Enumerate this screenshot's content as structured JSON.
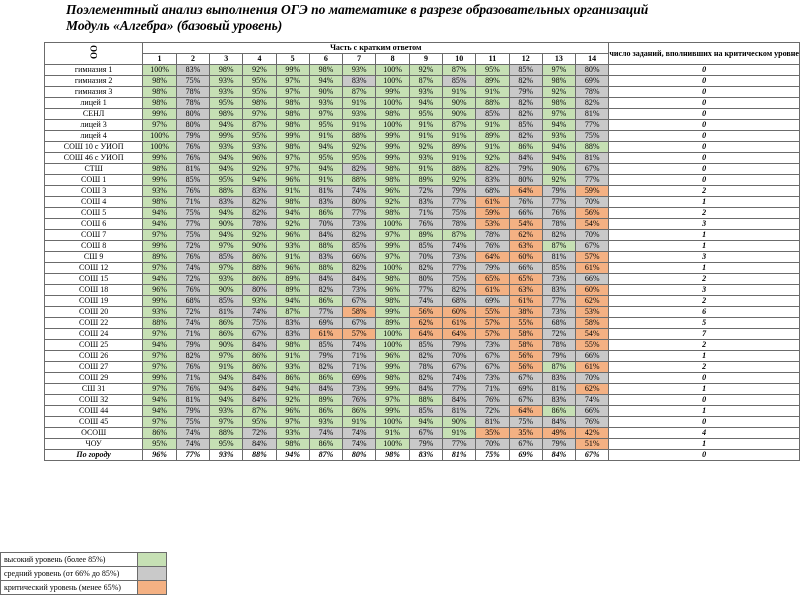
{
  "title_line1": "Поэлементный анализ выполнения ОГЭ по математике в разрезе образовательных организаций",
  "title_line2": "Модуль «Алгебра» (базовый уровень)",
  "header": {
    "oo": "ОО",
    "short_answer": "Часть с кратким ответом",
    "critical": "число заданий, вполнивших на критическом уровне",
    "task_numbers": [
      "1",
      "2",
      "3",
      "4",
      "5",
      "6",
      "7",
      "8",
      "9",
      "10",
      "11",
      "12",
      "13",
      "14"
    ]
  },
  "colors": {
    "high": "#c6e0b4",
    "mid": "#c9c9c9",
    "crit": "#f4b183"
  },
  "rows": [
    {
      "name": "гимназия 1",
      "v": [
        "100%",
        "83%",
        "98%",
        "92%",
        "99%",
        "98%",
        "93%",
        "100%",
        "92%",
        "87%",
        "95%",
        "85%",
        "97%",
        "80%"
      ],
      "c": [
        "g",
        "m",
        "g",
        "g",
        "g",
        "g",
        "g",
        "g",
        "g",
        "g",
        "g",
        "m",
        "g",
        "m"
      ],
      "n": "0"
    },
    {
      "name": "гимназия 2",
      "v": [
        "98%",
        "75%",
        "93%",
        "95%",
        "97%",
        "94%",
        "83%",
        "100%",
        "87%",
        "85%",
        "89%",
        "82%",
        "98%",
        "69%"
      ],
      "c": [
        "g",
        "m",
        "g",
        "g",
        "g",
        "g",
        "m",
        "g",
        "g",
        "m",
        "g",
        "m",
        "g",
        "m"
      ],
      "n": "0"
    },
    {
      "name": "гимназия 3",
      "v": [
        "98%",
        "78%",
        "93%",
        "95%",
        "97%",
        "90%",
        "87%",
        "99%",
        "93%",
        "91%",
        "91%",
        "79%",
        "92%",
        "78%"
      ],
      "c": [
        "g",
        "m",
        "g",
        "g",
        "g",
        "g",
        "g",
        "g",
        "g",
        "g",
        "g",
        "m",
        "g",
        "m"
      ],
      "n": "0"
    },
    {
      "name": "лицей 1",
      "v": [
        "98%",
        "78%",
        "95%",
        "98%",
        "98%",
        "93%",
        "91%",
        "100%",
        "94%",
        "90%",
        "88%",
        "82%",
        "98%",
        "82%"
      ],
      "c": [
        "g",
        "m",
        "g",
        "g",
        "g",
        "g",
        "g",
        "g",
        "g",
        "g",
        "g",
        "m",
        "g",
        "m"
      ],
      "n": "0"
    },
    {
      "name": "СЕНЛ",
      "v": [
        "99%",
        "80%",
        "98%",
        "97%",
        "98%",
        "97%",
        "93%",
        "98%",
        "95%",
        "90%",
        "85%",
        "82%",
        "97%",
        "81%"
      ],
      "c": [
        "g",
        "m",
        "g",
        "g",
        "g",
        "g",
        "g",
        "g",
        "g",
        "g",
        "m",
        "m",
        "g",
        "m"
      ],
      "n": "0"
    },
    {
      "name": "лицей 3",
      "v": [
        "97%",
        "80%",
        "94%",
        "87%",
        "98%",
        "95%",
        "91%",
        "100%",
        "91%",
        "87%",
        "91%",
        "85%",
        "94%",
        "77%"
      ],
      "c": [
        "g",
        "m",
        "g",
        "g",
        "g",
        "g",
        "g",
        "g",
        "g",
        "g",
        "g",
        "m",
        "g",
        "m"
      ],
      "n": "0"
    },
    {
      "name": "лицей 4",
      "v": [
        "100%",
        "79%",
        "99%",
        "95%",
        "99%",
        "91%",
        "88%",
        "99%",
        "91%",
        "91%",
        "89%",
        "82%",
        "93%",
        "75%"
      ],
      "c": [
        "g",
        "m",
        "g",
        "g",
        "g",
        "g",
        "g",
        "g",
        "g",
        "g",
        "g",
        "m",
        "g",
        "m"
      ],
      "n": "0"
    },
    {
      "name": "СОШ 10 с УИОП",
      "v": [
        "100%",
        "76%",
        "93%",
        "93%",
        "98%",
        "94%",
        "92%",
        "99%",
        "92%",
        "89%",
        "91%",
        "86%",
        "94%",
        "88%"
      ],
      "c": [
        "g",
        "m",
        "g",
        "g",
        "g",
        "g",
        "g",
        "g",
        "g",
        "g",
        "g",
        "g",
        "g",
        "g"
      ],
      "n": "0"
    },
    {
      "name": "СОШ 46 с УИОП",
      "v": [
        "99%",
        "76%",
        "94%",
        "96%",
        "97%",
        "95%",
        "95%",
        "99%",
        "93%",
        "91%",
        "92%",
        "84%",
        "94%",
        "81%"
      ],
      "c": [
        "g",
        "m",
        "g",
        "g",
        "g",
        "g",
        "g",
        "g",
        "g",
        "g",
        "g",
        "m",
        "g",
        "m"
      ],
      "n": "0"
    },
    {
      "name": "СТШ",
      "v": [
        "98%",
        "81%",
        "94%",
        "92%",
        "97%",
        "94%",
        "82%",
        "98%",
        "91%",
        "88%",
        "82%",
        "79%",
        "90%",
        "67%"
      ],
      "c": [
        "g",
        "m",
        "g",
        "g",
        "g",
        "g",
        "m",
        "g",
        "g",
        "g",
        "m",
        "m",
        "g",
        "m"
      ],
      "n": "0"
    },
    {
      "name": "СОШ 1",
      "v": [
        "99%",
        "85%",
        "95%",
        "94%",
        "96%",
        "91%",
        "88%",
        "98%",
        "89%",
        "92%",
        "83%",
        "80%",
        "92%",
        "77%"
      ],
      "c": [
        "g",
        "m",
        "g",
        "g",
        "g",
        "g",
        "g",
        "g",
        "g",
        "g",
        "m",
        "m",
        "g",
        "m"
      ],
      "n": "0"
    },
    {
      "name": "СОШ 3",
      "v": [
        "93%",
        "76%",
        "88%",
        "83%",
        "91%",
        "81%",
        "74%",
        "96%",
        "72%",
        "79%",
        "68%",
        "64%",
        "79%",
        "59%"
      ],
      "c": [
        "g",
        "m",
        "g",
        "m",
        "g",
        "m",
        "m",
        "g",
        "m",
        "m",
        "m",
        "c",
        "m",
        "c"
      ],
      "n": "2"
    },
    {
      "name": "СОШ 4",
      "v": [
        "98%",
        "71%",
        "83%",
        "82%",
        "98%",
        "83%",
        "80%",
        "92%",
        "83%",
        "77%",
        "61%",
        "76%",
        "77%",
        "70%"
      ],
      "c": [
        "g",
        "m",
        "m",
        "m",
        "g",
        "m",
        "m",
        "g",
        "m",
        "m",
        "c",
        "m",
        "m",
        "m"
      ],
      "n": "1"
    },
    {
      "name": "СОШ 5",
      "v": [
        "94%",
        "75%",
        "94%",
        "82%",
        "94%",
        "86%",
        "77%",
        "98%",
        "71%",
        "75%",
        "59%",
        "66%",
        "76%",
        "56%"
      ],
      "c": [
        "g",
        "m",
        "g",
        "m",
        "g",
        "g",
        "m",
        "g",
        "m",
        "m",
        "c",
        "m",
        "m",
        "c"
      ],
      "n": "2"
    },
    {
      "name": "СОШ 6",
      "v": [
        "94%",
        "77%",
        "90%",
        "78%",
        "92%",
        "70%",
        "73%",
        "100%",
        "76%",
        "78%",
        "53%",
        "54%",
        "78%",
        "54%"
      ],
      "c": [
        "g",
        "m",
        "g",
        "m",
        "g",
        "m",
        "m",
        "g",
        "m",
        "m",
        "c",
        "c",
        "m",
        "c"
      ],
      "n": "3"
    },
    {
      "name": "СОШ 7",
      "v": [
        "97%",
        "75%",
        "94%",
        "92%",
        "96%",
        "84%",
        "82%",
        "97%",
        "89%",
        "87%",
        "78%",
        "62%",
        "82%",
        "70%"
      ],
      "c": [
        "g",
        "m",
        "g",
        "g",
        "g",
        "m",
        "m",
        "g",
        "g",
        "g",
        "m",
        "c",
        "m",
        "m"
      ],
      "n": "1"
    },
    {
      "name": "СОШ 8",
      "v": [
        "99%",
        "72%",
        "97%",
        "90%",
        "93%",
        "88%",
        "85%",
        "99%",
        "85%",
        "74%",
        "76%",
        "63%",
        "87%",
        "67%"
      ],
      "c": [
        "g",
        "m",
        "g",
        "g",
        "g",
        "g",
        "m",
        "g",
        "m",
        "m",
        "m",
        "c",
        "g",
        "m"
      ],
      "n": "1"
    },
    {
      "name": "СШ 9",
      "v": [
        "89%",
        "76%",
        "85%",
        "86%",
        "91%",
        "83%",
        "66%",
        "97%",
        "70%",
        "73%",
        "64%",
        "60%",
        "81%",
        "57%"
      ],
      "c": [
        "g",
        "m",
        "m",
        "g",
        "g",
        "m",
        "m",
        "g",
        "m",
        "m",
        "c",
        "c",
        "m",
        "c"
      ],
      "n": "3"
    },
    {
      "name": "СОШ 12",
      "v": [
        "97%",
        "74%",
        "97%",
        "88%",
        "96%",
        "88%",
        "82%",
        "100%",
        "82%",
        "77%",
        "79%",
        "66%",
        "85%",
        "61%"
      ],
      "c": [
        "g",
        "m",
        "g",
        "g",
        "g",
        "g",
        "m",
        "g",
        "m",
        "m",
        "m",
        "m",
        "m",
        "c"
      ],
      "n": "1"
    },
    {
      "name": "СОШ 15",
      "v": [
        "94%",
        "72%",
        "93%",
        "86%",
        "89%",
        "84%",
        "84%",
        "98%",
        "80%",
        "75%",
        "65%",
        "65%",
        "73%",
        "66%"
      ],
      "c": [
        "g",
        "m",
        "g",
        "g",
        "g",
        "m",
        "m",
        "g",
        "m",
        "m",
        "c",
        "c",
        "m",
        "m"
      ],
      "n": "2"
    },
    {
      "name": "СОШ 18",
      "v": [
        "96%",
        "76%",
        "90%",
        "80%",
        "89%",
        "82%",
        "73%",
        "96%",
        "77%",
        "82%",
        "61%",
        "63%",
        "83%",
        "60%"
      ],
      "c": [
        "g",
        "m",
        "g",
        "m",
        "g",
        "m",
        "m",
        "g",
        "m",
        "m",
        "c",
        "c",
        "m",
        "c"
      ],
      "n": "3"
    },
    {
      "name": "СОШ 19",
      "v": [
        "99%",
        "68%",
        "85%",
        "93%",
        "94%",
        "86%",
        "67%",
        "98%",
        "74%",
        "68%",
        "69%",
        "61%",
        "77%",
        "62%"
      ],
      "c": [
        "g",
        "m",
        "m",
        "g",
        "g",
        "g",
        "m",
        "g",
        "m",
        "m",
        "m",
        "c",
        "m",
        "c"
      ],
      "n": "2"
    },
    {
      "name": "СОШ 20",
      "v": [
        "93%",
        "72%",
        "81%",
        "74%",
        "87%",
        "77%",
        "58%",
        "99%",
        "56%",
        "60%",
        "55%",
        "38%",
        "73%",
        "53%"
      ],
      "c": [
        "g",
        "m",
        "m",
        "m",
        "g",
        "m",
        "c",
        "g",
        "c",
        "c",
        "c",
        "c",
        "m",
        "c"
      ],
      "n": "6"
    },
    {
      "name": "СОШ 22",
      "v": [
        "88%",
        "74%",
        "86%",
        "75%",
        "83%",
        "69%",
        "67%",
        "89%",
        "62%",
        "61%",
        "57%",
        "55%",
        "68%",
        "58%"
      ],
      "c": [
        "g",
        "m",
        "g",
        "m",
        "m",
        "m",
        "m",
        "g",
        "c",
        "c",
        "c",
        "c",
        "m",
        "c"
      ],
      "n": "5"
    },
    {
      "name": "СОШ 24",
      "v": [
        "97%",
        "71%",
        "86%",
        "67%",
        "83%",
        "61%",
        "57%",
        "100%",
        "64%",
        "64%",
        "57%",
        "58%",
        "72%",
        "54%"
      ],
      "c": [
        "g",
        "m",
        "g",
        "m",
        "m",
        "c",
        "c",
        "g",
        "c",
        "c",
        "c",
        "c",
        "m",
        "c"
      ],
      "n": "7"
    },
    {
      "name": "СОШ 25",
      "v": [
        "94%",
        "79%",
        "90%",
        "84%",
        "98%",
        "85%",
        "74%",
        "100%",
        "85%",
        "79%",
        "73%",
        "58%",
        "78%",
        "55%"
      ],
      "c": [
        "g",
        "m",
        "g",
        "m",
        "g",
        "m",
        "m",
        "g",
        "m",
        "m",
        "m",
        "c",
        "m",
        "c"
      ],
      "n": "2"
    },
    {
      "name": "СОШ 26",
      "v": [
        "97%",
        "82%",
        "97%",
        "86%",
        "91%",
        "79%",
        "71%",
        "96%",
        "82%",
        "70%",
        "67%",
        "56%",
        "79%",
        "66%"
      ],
      "c": [
        "g",
        "m",
        "g",
        "g",
        "g",
        "m",
        "m",
        "g",
        "m",
        "m",
        "m",
        "c",
        "m",
        "m"
      ],
      "n": "1"
    },
    {
      "name": "СОШ 27",
      "v": [
        "97%",
        "76%",
        "91%",
        "86%",
        "93%",
        "82%",
        "71%",
        "99%",
        "78%",
        "67%",
        "67%",
        "56%",
        "87%",
        "61%"
      ],
      "c": [
        "g",
        "m",
        "g",
        "g",
        "g",
        "m",
        "m",
        "g",
        "m",
        "m",
        "m",
        "c",
        "g",
        "c"
      ],
      "n": "2"
    },
    {
      "name": "СОШ 29",
      "v": [
        "99%",
        "71%",
        "94%",
        "84%",
        "86%",
        "86%",
        "69%",
        "98%",
        "82%",
        "74%",
        "73%",
        "67%",
        "83%",
        "70%"
      ],
      "c": [
        "g",
        "m",
        "g",
        "m",
        "g",
        "g",
        "m",
        "g",
        "m",
        "m",
        "m",
        "m",
        "m",
        "m"
      ],
      "n": "0"
    },
    {
      "name": "СШ 31",
      "v": [
        "97%",
        "76%",
        "94%",
        "84%",
        "94%",
        "84%",
        "73%",
        "99%",
        "84%",
        "77%",
        "71%",
        "69%",
        "81%",
        "62%"
      ],
      "c": [
        "g",
        "m",
        "g",
        "m",
        "g",
        "m",
        "m",
        "g",
        "m",
        "m",
        "m",
        "m",
        "m",
        "c"
      ],
      "n": "1"
    },
    {
      "name": "СОШ 32",
      "v": [
        "94%",
        "81%",
        "94%",
        "84%",
        "92%",
        "89%",
        "76%",
        "97%",
        "88%",
        "84%",
        "76%",
        "67%",
        "83%",
        "74%"
      ],
      "c": [
        "g",
        "m",
        "g",
        "m",
        "g",
        "g",
        "m",
        "g",
        "g",
        "m",
        "m",
        "m",
        "m",
        "m"
      ],
      "n": "0"
    },
    {
      "name": "СОШ 44",
      "v": [
        "94%",
        "79%",
        "93%",
        "87%",
        "96%",
        "86%",
        "86%",
        "99%",
        "85%",
        "81%",
        "72%",
        "64%",
        "86%",
        "66%"
      ],
      "c": [
        "g",
        "m",
        "g",
        "g",
        "g",
        "g",
        "g",
        "g",
        "m",
        "m",
        "m",
        "c",
        "g",
        "m"
      ],
      "n": "1"
    },
    {
      "name": "СОШ 45",
      "v": [
        "97%",
        "75%",
        "97%",
        "95%",
        "97%",
        "93%",
        "91%",
        "100%",
        "94%",
        "90%",
        "81%",
        "75%",
        "84%",
        "76%"
      ],
      "c": [
        "g",
        "m",
        "g",
        "g",
        "g",
        "g",
        "g",
        "g",
        "g",
        "g",
        "m",
        "m",
        "m",
        "m"
      ],
      "n": "0"
    },
    {
      "name": "ОСОШ",
      "v": [
        "86%",
        "74%",
        "88%",
        "72%",
        "93%",
        "74%",
        "74%",
        "91%",
        "67%",
        "91%",
        "35%",
        "35%",
        "49%",
        "42%"
      ],
      "c": [
        "g",
        "m",
        "g",
        "m",
        "g",
        "m",
        "m",
        "g",
        "m",
        "g",
        "c",
        "c",
        "c",
        "c"
      ],
      "n": "4"
    },
    {
      "name": "ЧОУ",
      "v": [
        "95%",
        "74%",
        "95%",
        "84%",
        "98%",
        "86%",
        "74%",
        "100%",
        "79%",
        "77%",
        "70%",
        "67%",
        "79%",
        "51%"
      ],
      "c": [
        "g",
        "m",
        "g",
        "m",
        "g",
        "g",
        "m",
        "g",
        "m",
        "m",
        "m",
        "m",
        "m",
        "c"
      ],
      "n": "1"
    }
  ],
  "total": {
    "name": "По городу",
    "v": [
      "96%",
      "77%",
      "93%",
      "88%",
      "94%",
      "87%",
      "80%",
      "98%",
      "83%",
      "81%",
      "75%",
      "69%",
      "84%",
      "67%"
    ],
    "n": "0"
  },
  "legend": [
    {
      "label": "высокий уровень (более 85%)",
      "color": "#c6e0b4"
    },
    {
      "label": "средний уровень (от 66% до 85%)",
      "color": "#c9c9c9"
    },
    {
      "label": "критический уровень (менее 65%)",
      "color": "#f4b183"
    }
  ]
}
